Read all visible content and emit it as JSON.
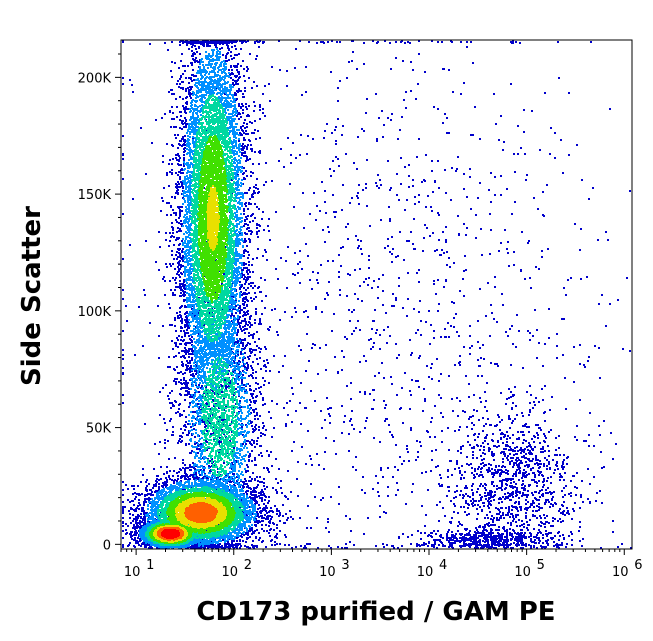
{
  "chart_data": {
    "type": "scatter",
    "title": "",
    "xlabel": "CD173 purified / GAM PE",
    "ylabel": "Side Scatter",
    "x_scale": "log",
    "xlim": [
      7,
      1200000
    ],
    "ylim": [
      -2000,
      216000
    ],
    "x_ticks": [
      {
        "value": 10,
        "base": "10",
        "exp": "1"
      },
      {
        "value": 100,
        "base": "10",
        "exp": "2"
      },
      {
        "value": 1000,
        "base": "10",
        "exp": "3"
      },
      {
        "value": 10000,
        "base": "10",
        "exp": "4"
      },
      {
        "value": 100000,
        "base": "10",
        "exp": "5"
      },
      {
        "value": 1000000,
        "base": "10",
        "exp": "6"
      }
    ],
    "y_ticks": [
      {
        "value": 0,
        "label": "0"
      },
      {
        "value": 50000,
        "label": "50K"
      },
      {
        "value": 100000,
        "label": "100K"
      },
      {
        "value": 150000,
        "label": "150K"
      },
      {
        "value": 200000,
        "label": "200K"
      }
    ],
    "grid": false,
    "legend": "none",
    "color_scale": [
      "#0000cc",
      "#0090ff",
      "#00d8a0",
      "#40e000",
      "#e8e000",
      "#ff6000",
      "#ff0000"
    ],
    "populations": [
      {
        "x_center": 60,
        "y_center": 140000,
        "x_spread_decades": 0.17,
        "y_spread": 40000,
        "points": 9000,
        "peak_density": 0.55
      },
      {
        "x_center": 70,
        "y_center": 55000,
        "x_spread_decades": 0.2,
        "y_spread": 28000,
        "points": 2500,
        "peak_density": 0.35
      },
      {
        "x_center": 45,
        "y_center": 14000,
        "x_spread_decades": 0.28,
        "y_spread": 7000,
        "points": 6000,
        "peak_density": 0.8
      },
      {
        "x_center": 22,
        "y_center": 5000,
        "x_spread_decades": 0.15,
        "y_spread": 3000,
        "points": 3500,
        "peak_density": 1.0
      },
      {
        "x_center": 70000,
        "y_center": 25000,
        "x_spread_decades": 0.35,
        "y_spread": 16000,
        "points": 1100,
        "peak_density": 0.05
      },
      {
        "x_center": 40000,
        "y_center": 3000,
        "x_spread_decades": 0.35,
        "y_spread": 2000,
        "points": 400,
        "peak_density": 0.05
      },
      {
        "x_center": 3000,
        "y_center": 100000,
        "x_spread_decades": 1.3,
        "y_spread": 70000,
        "points": 1400,
        "peak_density": 0.02
      }
    ]
  }
}
